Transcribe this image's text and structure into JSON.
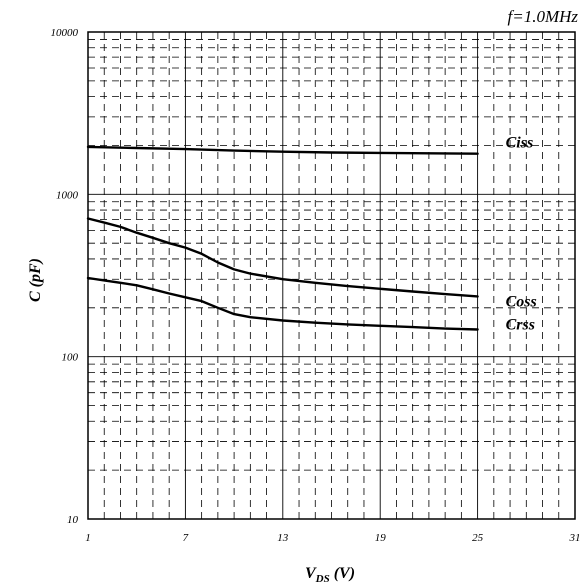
{
  "chart_data": {
    "type": "line",
    "annotation": "f=1.0MHz",
    "xlabel_main": "V",
    "xlabel_sub": "DS",
    "xlabel_unit": "(V)",
    "ylabel": "C (pF)",
    "x_ticks": [
      "1",
      "7",
      "13",
      "19",
      "25",
      "31"
    ],
    "x_tick_values": [
      1,
      7,
      13,
      19,
      25,
      31
    ],
    "y_ticks": [
      "10000",
      "1000",
      "100",
      "10"
    ],
    "y_tick_values": [
      10000,
      1000,
      100,
      10
    ],
    "xlim": [
      1,
      31
    ],
    "ylim": [
      10,
      10000
    ],
    "y_scale": "log",
    "grid": true,
    "series": [
      {
        "name": "Ciss",
        "x": [
          1,
          4,
          7,
          10,
          13,
          16,
          19,
          22,
          25
        ],
        "values": [
          1960,
          1930,
          1900,
          1860,
          1830,
          1810,
          1800,
          1790,
          1780
        ]
      },
      {
        "name": "Coss",
        "x": [
          1,
          2,
          3,
          4,
          5,
          6,
          7,
          8,
          9,
          10,
          11,
          13,
          15,
          17,
          19,
          21,
          23,
          25
        ],
        "values": [
          710,
          670,
          630,
          580,
          540,
          500,
          470,
          430,
          380,
          345,
          325,
          300,
          285,
          272,
          262,
          252,
          243,
          235
        ]
      },
      {
        "name": "Crss",
        "x": [
          1,
          2,
          3,
          4,
          5,
          6,
          7,
          8,
          9,
          10,
          11,
          13,
          15,
          17,
          19,
          21,
          23,
          25
        ],
        "values": [
          305,
          295,
          285,
          275,
          260,
          245,
          232,
          220,
          200,
          183,
          175,
          167,
          162,
          158,
          155,
          152,
          149,
          147
        ]
      }
    ]
  }
}
